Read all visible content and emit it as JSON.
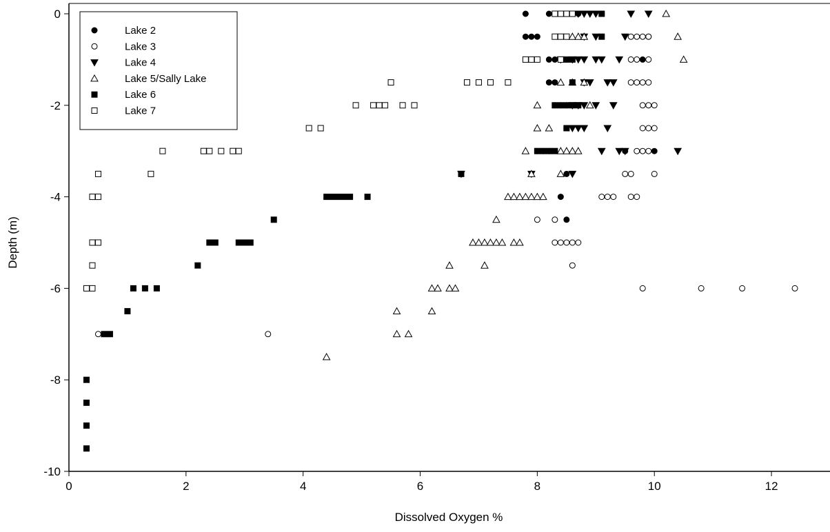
{
  "chart_data": {
    "type": "scatter",
    "title": "",
    "xlabel": "Dissolved Oxygen %",
    "ylabel": "Depth (m)",
    "xlim": [
      0,
      13
    ],
    "ylim": [
      -10,
      0
    ],
    "xticks": [
      0,
      2,
      4,
      6,
      8,
      10,
      12
    ],
    "xtick_labels": [
      "0",
      "2",
      "4",
      "6",
      "8",
      "10",
      "12"
    ],
    "yticks": [
      0,
      -2,
      -4,
      -6,
      -8,
      -10
    ],
    "ytick_labels": [
      "0",
      "-2",
      "-4",
      "-6",
      "-8",
      "-10"
    ],
    "grid": false,
    "legend_position": "top-left",
    "series": [
      {
        "name": "Lake 2",
        "marker": "filled-circle",
        "points": [
          [
            7.8,
            0
          ],
          [
            8.2,
            0
          ],
          [
            8.3,
            0
          ],
          [
            8.4,
            0
          ],
          [
            8.5,
            0
          ],
          [
            8.6,
            0
          ],
          [
            8.7,
            0
          ],
          [
            9.1,
            0
          ],
          [
            7.8,
            -0.5
          ],
          [
            7.9,
            -0.5
          ],
          [
            8.0,
            -0.5
          ],
          [
            9.9,
            -0.5
          ],
          [
            8.2,
            -1
          ],
          [
            8.3,
            -1
          ],
          [
            9.8,
            -1
          ],
          [
            8.2,
            -1.5
          ],
          [
            8.3,
            -1.5
          ],
          [
            8.3,
            -2
          ],
          [
            8.4,
            -2
          ],
          [
            8.5,
            -2
          ],
          [
            8.5,
            -2.5
          ],
          [
            8.0,
            -3
          ],
          [
            8.1,
            -3
          ],
          [
            8.2,
            -3
          ],
          [
            9.5,
            -3
          ],
          [
            10.0,
            -3
          ],
          [
            8.5,
            -3.5
          ],
          [
            8.4,
            -4
          ],
          [
            8.5,
            -4.5
          ]
        ]
      },
      {
        "name": "Lake 3",
        "marker": "open-circle",
        "points": [
          [
            9.6,
            -0.5
          ],
          [
            9.7,
            -0.5
          ],
          [
            9.8,
            -0.5
          ],
          [
            9.9,
            -0.5
          ],
          [
            9.6,
            -1
          ],
          [
            9.7,
            -1
          ],
          [
            9.9,
            -1
          ],
          [
            9.6,
            -1.5
          ],
          [
            9.7,
            -1.5
          ],
          [
            9.8,
            -1.5
          ],
          [
            9.9,
            -1.5
          ],
          [
            9.8,
            -2
          ],
          [
            9.9,
            -2
          ],
          [
            10.0,
            -2
          ],
          [
            9.8,
            -2.5
          ],
          [
            9.9,
            -2.5
          ],
          [
            10.0,
            -2.5
          ],
          [
            9.7,
            -3
          ],
          [
            9.8,
            -3
          ],
          [
            9.9,
            -3
          ],
          [
            9.5,
            -3.5
          ],
          [
            9.6,
            -3.5
          ],
          [
            10.0,
            -3.5
          ],
          [
            9.1,
            -4
          ],
          [
            9.2,
            -4
          ],
          [
            9.3,
            -4
          ],
          [
            9.6,
            -4
          ],
          [
            9.7,
            -4
          ],
          [
            8.0,
            -4.5
          ],
          [
            8.3,
            -4.5
          ],
          [
            8.3,
            -5
          ],
          [
            8.4,
            -5
          ],
          [
            8.5,
            -5
          ],
          [
            8.6,
            -5
          ],
          [
            8.7,
            -5
          ],
          [
            8.6,
            -5.5
          ],
          [
            9.8,
            -6
          ],
          [
            10.8,
            -6
          ],
          [
            11.5,
            -6
          ],
          [
            12.4,
            -6
          ],
          [
            0.5,
            -7
          ],
          [
            3.4,
            -7
          ]
        ]
      },
      {
        "name": "Lake 4",
        "marker": "filled-triangle-down",
        "points": [
          [
            8.7,
            0
          ],
          [
            8.8,
            0
          ],
          [
            8.9,
            0
          ],
          [
            9.0,
            0
          ],
          [
            9.6,
            0
          ],
          [
            9.9,
            0
          ],
          [
            8.8,
            -0.5
          ],
          [
            9.0,
            -0.5
          ],
          [
            9.5,
            -0.5
          ],
          [
            8.4,
            -1
          ],
          [
            8.6,
            -1
          ],
          [
            8.7,
            -1
          ],
          [
            8.8,
            -1
          ],
          [
            9.0,
            -1
          ],
          [
            9.1,
            -1
          ],
          [
            9.4,
            -1
          ],
          [
            8.8,
            -1.5
          ],
          [
            8.9,
            -1.5
          ],
          [
            9.2,
            -1.5
          ],
          [
            9.3,
            -1.5
          ],
          [
            8.6,
            -2
          ],
          [
            8.7,
            -2
          ],
          [
            8.8,
            -2
          ],
          [
            9.0,
            -2
          ],
          [
            9.3,
            -2
          ],
          [
            8.6,
            -2.5
          ],
          [
            8.7,
            -2.5
          ],
          [
            8.8,
            -2.5
          ],
          [
            9.2,
            -2.5
          ],
          [
            9.1,
            -3
          ],
          [
            9.4,
            -3
          ],
          [
            9.5,
            -3
          ],
          [
            10.4,
            -3
          ],
          [
            6.7,
            -3.5
          ],
          [
            7.9,
            -3.5
          ],
          [
            8.6,
            -3.5
          ]
        ]
      },
      {
        "name": "Lake 5/Sally Lake",
        "marker": "open-triangle-up",
        "points": [
          [
            10.2,
            0
          ],
          [
            8.6,
            -0.5
          ],
          [
            8.7,
            -0.5
          ],
          [
            8.8,
            -0.5
          ],
          [
            10.4,
            -0.5
          ],
          [
            10.5,
            -1
          ],
          [
            8.4,
            -1.5
          ],
          [
            8.6,
            -1.5
          ],
          [
            8.8,
            -1.5
          ],
          [
            8.0,
            -2
          ],
          [
            8.9,
            -2
          ],
          [
            8.0,
            -2.5
          ],
          [
            8.2,
            -2.5
          ],
          [
            7.8,
            -3
          ],
          [
            8.4,
            -3
          ],
          [
            8.5,
            -3
          ],
          [
            8.6,
            -3
          ],
          [
            8.7,
            -3
          ],
          [
            7.9,
            -3.5
          ],
          [
            8.4,
            -3.5
          ],
          [
            7.5,
            -4
          ],
          [
            7.6,
            -4
          ],
          [
            7.7,
            -4
          ],
          [
            7.8,
            -4
          ],
          [
            7.9,
            -4
          ],
          [
            8.0,
            -4
          ],
          [
            8.1,
            -4
          ],
          [
            7.3,
            -4.5
          ],
          [
            6.9,
            -5
          ],
          [
            7.0,
            -5
          ],
          [
            7.1,
            -5
          ],
          [
            7.2,
            -5
          ],
          [
            7.3,
            -5
          ],
          [
            7.4,
            -5
          ],
          [
            7.6,
            -5
          ],
          [
            7.7,
            -5
          ],
          [
            6.5,
            -5.5
          ],
          [
            7.1,
            -5.5
          ],
          [
            6.2,
            -6
          ],
          [
            6.3,
            -6
          ],
          [
            6.5,
            -6
          ],
          [
            6.6,
            -6
          ],
          [
            5.6,
            -6.5
          ],
          [
            6.2,
            -6.5
          ],
          [
            5.6,
            -7
          ],
          [
            5.8,
            -7
          ],
          [
            4.4,
            -7.5
          ]
        ]
      },
      {
        "name": "Lake 6",
        "marker": "filled-square",
        "points": [
          [
            8.6,
            0
          ],
          [
            9.1,
            0
          ],
          [
            9.1,
            -0.5
          ],
          [
            8.5,
            -1
          ],
          [
            8.6,
            -1
          ],
          [
            8.6,
            -1.5
          ],
          [
            8.3,
            -2
          ],
          [
            8.4,
            -2
          ],
          [
            8.5,
            -2
          ],
          [
            8.6,
            -2
          ],
          [
            8.7,
            -2
          ],
          [
            8.5,
            -2.5
          ],
          [
            8.0,
            -3
          ],
          [
            8.1,
            -3
          ],
          [
            8.2,
            -3
          ],
          [
            8.3,
            -3
          ],
          [
            6.7,
            -3.5
          ],
          [
            4.4,
            -4
          ],
          [
            4.5,
            -4
          ],
          [
            4.6,
            -4
          ],
          [
            4.7,
            -4
          ],
          [
            4.8,
            -4
          ],
          [
            5.1,
            -4
          ],
          [
            3.5,
            -4.5
          ],
          [
            2.4,
            -5
          ],
          [
            2.5,
            -5
          ],
          [
            2.9,
            -5
          ],
          [
            3.0,
            -5
          ],
          [
            3.1,
            -5
          ],
          [
            2.2,
            -5.5
          ],
          [
            1.1,
            -6
          ],
          [
            1.3,
            -6
          ],
          [
            1.5,
            -6
          ],
          [
            1.0,
            -6.5
          ],
          [
            0.6,
            -7
          ],
          [
            0.7,
            -7
          ],
          [
            0.3,
            -8
          ],
          [
            0.3,
            -8.5
          ],
          [
            0.3,
            -9
          ],
          [
            0.3,
            -9.5
          ]
        ]
      },
      {
        "name": "Lake 7",
        "marker": "open-square",
        "points": [
          [
            8.3,
            0
          ],
          [
            8.4,
            0
          ],
          [
            8.5,
            0
          ],
          [
            8.6,
            0
          ],
          [
            8.3,
            -0.5
          ],
          [
            8.4,
            -0.5
          ],
          [
            8.5,
            -0.5
          ],
          [
            7.8,
            -1
          ],
          [
            7.9,
            -1
          ],
          [
            8.0,
            -1
          ],
          [
            8.4,
            -1
          ],
          [
            5.5,
            -1.5
          ],
          [
            6.8,
            -1.5
          ],
          [
            7.0,
            -1.5
          ],
          [
            7.2,
            -1.5
          ],
          [
            7.5,
            -1.5
          ],
          [
            4.9,
            -2
          ],
          [
            5.2,
            -2
          ],
          [
            5.3,
            -2
          ],
          [
            5.4,
            -2
          ],
          [
            5.7,
            -2
          ],
          [
            5.9,
            -2
          ],
          [
            4.1,
            -2.5
          ],
          [
            4.3,
            -2.5
          ],
          [
            1.6,
            -3
          ],
          [
            2.3,
            -3
          ],
          [
            2.4,
            -3
          ],
          [
            2.6,
            -3
          ],
          [
            2.8,
            -3
          ],
          [
            2.9,
            -3
          ],
          [
            0.5,
            -3.5
          ],
          [
            1.4,
            -3.5
          ],
          [
            0.4,
            -4
          ],
          [
            0.5,
            -4
          ],
          [
            0.4,
            -5
          ],
          [
            0.5,
            -5
          ],
          [
            0.4,
            -5.5
          ],
          [
            0.3,
            -6
          ],
          [
            0.4,
            -6
          ]
        ]
      }
    ]
  }
}
